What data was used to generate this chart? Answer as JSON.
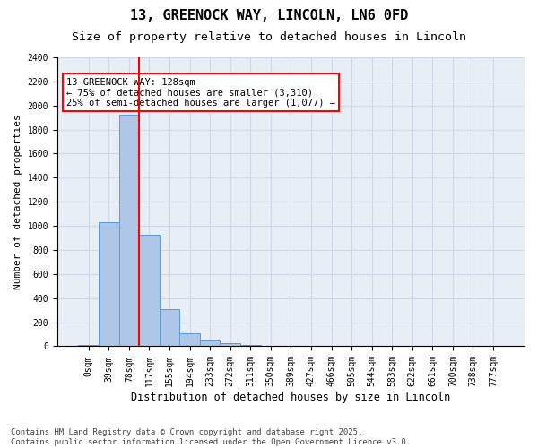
{
  "title": "13, GREENOCK WAY, LINCOLN, LN6 0FD",
  "subtitle": "Size of property relative to detached houses in Lincoln",
  "xlabel": "Distribution of detached houses by size in Lincoln",
  "ylabel": "Number of detached properties",
  "bin_labels": [
    "0sqm",
    "39sqm",
    "78sqm",
    "117sqm",
    "155sqm",
    "194sqm",
    "233sqm",
    "272sqm",
    "311sqm",
    "350sqm",
    "389sqm",
    "427sqm",
    "466sqm",
    "505sqm",
    "544sqm",
    "583sqm",
    "622sqm",
    "661sqm",
    "700sqm",
    "738sqm",
    "777sqm"
  ],
  "bar_values": [
    10,
    1030,
    1920,
    930,
    310,
    110,
    50,
    25,
    10,
    0,
    0,
    0,
    0,
    0,
    0,
    0,
    0,
    0,
    0,
    0,
    0
  ],
  "bar_color": "#aec6e8",
  "bar_edge_color": "#5b9bd5",
  "vline_pos": 2.5,
  "vline_color": "red",
  "annotation_text": "13 GREENOCK WAY: 128sqm\n← 75% of detached houses are smaller (3,310)\n25% of semi-detached houses are larger (1,077) →",
  "ylim": [
    0,
    2400
  ],
  "yticks": [
    0,
    200,
    400,
    600,
    800,
    1000,
    1200,
    1400,
    1600,
    1800,
    2000,
    2200,
    2400
  ],
  "grid_color": "#d0d8e8",
  "bg_color": "#e8eef5",
  "footer_text": "Contains HM Land Registry data © Crown copyright and database right 2025.\nContains public sector information licensed under the Open Government Licence v3.0.",
  "title_fontsize": 11,
  "subtitle_fontsize": 9.5,
  "xlabel_fontsize": 8.5,
  "ylabel_fontsize": 8,
  "tick_fontsize": 7,
  "annotation_fontsize": 7.5,
  "footer_fontsize": 6.5
}
